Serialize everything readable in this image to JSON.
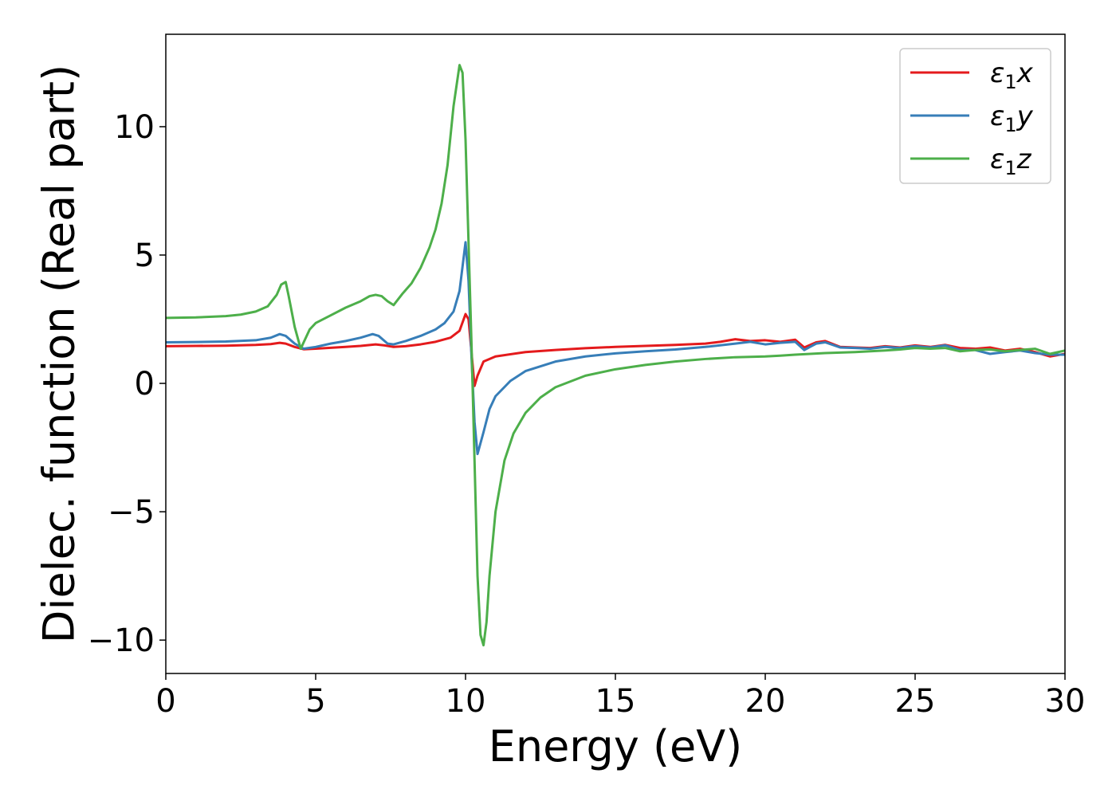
{
  "chart_data": {
    "type": "line",
    "title": "",
    "xlabel": "Energy (eV)",
    "ylabel": "Dielec. function (Real part)",
    "xlim": [
      0,
      30
    ],
    "ylim": [
      -11.3,
      13.6
    ],
    "xticks": [
      0,
      5,
      10,
      15,
      20,
      25,
      30
    ],
    "xtick_labels": [
      "0",
      "5",
      "10",
      "15",
      "20",
      "25",
      "30"
    ],
    "yticks": [
      -10,
      -5,
      0,
      5,
      10
    ],
    "ytick_labels": [
      "−10",
      "−5",
      "0",
      "5",
      "10"
    ],
    "grid": false,
    "legend_position": "upper right",
    "series": [
      {
        "name": "ε₁x",
        "legend_main": "ε",
        "legend_sub": "1",
        "legend_var": "x",
        "color": "#e41a1c",
        "x": [
          0,
          1,
          2,
          3,
          3.5,
          3.8,
          4.0,
          4.3,
          4.6,
          5.0,
          6.0,
          6.5,
          7.0,
          7.3,
          7.6,
          8.0,
          8.5,
          9.0,
          9.5,
          9.8,
          10.0,
          10.1,
          10.2,
          10.3,
          10.4,
          10.6,
          11.0,
          12.0,
          13.0,
          14.0,
          15.0,
          16.0,
          17.0,
          18.0,
          18.5,
          19.0,
          19.5,
          20.0,
          20.5,
          21.0,
          21.3,
          21.7,
          22.0,
          22.5,
          23.0,
          23.5,
          24.0,
          24.5,
          25.0,
          25.5,
          26.0,
          26.5,
          27.0,
          27.5,
          28.0,
          28.5,
          29.0,
          29.5,
          30.0
        ],
        "y": [
          1.45,
          1.46,
          1.47,
          1.5,
          1.53,
          1.58,
          1.55,
          1.42,
          1.33,
          1.35,
          1.42,
          1.46,
          1.52,
          1.48,
          1.42,
          1.45,
          1.52,
          1.62,
          1.78,
          2.05,
          2.7,
          2.5,
          1.2,
          -0.1,
          0.3,
          0.85,
          1.05,
          1.22,
          1.3,
          1.37,
          1.42,
          1.46,
          1.5,
          1.55,
          1.62,
          1.72,
          1.65,
          1.68,
          1.62,
          1.7,
          1.4,
          1.6,
          1.65,
          1.42,
          1.4,
          1.38,
          1.45,
          1.4,
          1.48,
          1.42,
          1.5,
          1.38,
          1.35,
          1.4,
          1.28,
          1.35,
          1.22,
          1.05,
          1.15
        ]
      },
      {
        "name": "ε₁y",
        "legend_main": "ε",
        "legend_sub": "1",
        "legend_var": "y",
        "color": "#377eb8",
        "x": [
          0,
          1,
          2,
          3,
          3.5,
          3.8,
          4.0,
          4.3,
          4.6,
          5.0,
          5.5,
          6.0,
          6.5,
          6.9,
          7.1,
          7.4,
          7.6,
          8.0,
          8.5,
          9.0,
          9.3,
          9.6,
          9.8,
          10.0,
          10.1,
          10.2,
          10.3,
          10.4,
          10.6,
          10.8,
          11.0,
          11.5,
          12.0,
          13.0,
          14.0,
          15.0,
          16.0,
          17.0,
          18.0,
          19.0,
          19.5,
          20.0,
          20.5,
          21.0,
          21.3,
          21.7,
          22.0,
          22.5,
          23.0,
          23.5,
          24.0,
          24.5,
          25.0,
          25.5,
          26.0,
          26.5,
          27.0,
          27.5,
          28.0,
          28.5,
          29.0,
          29.5,
          30.0
        ],
        "y": [
          1.6,
          1.61,
          1.63,
          1.68,
          1.78,
          1.92,
          1.85,
          1.55,
          1.35,
          1.42,
          1.55,
          1.65,
          1.78,
          1.92,
          1.85,
          1.55,
          1.52,
          1.65,
          1.85,
          2.1,
          2.35,
          2.8,
          3.6,
          5.5,
          4.0,
          1.0,
          -1.5,
          -2.75,
          -1.9,
          -1.0,
          -0.5,
          0.1,
          0.48,
          0.85,
          1.05,
          1.17,
          1.25,
          1.32,
          1.42,
          1.55,
          1.62,
          1.52,
          1.58,
          1.62,
          1.3,
          1.55,
          1.6,
          1.4,
          1.38,
          1.35,
          1.42,
          1.38,
          1.45,
          1.4,
          1.48,
          1.3,
          1.3,
          1.15,
          1.22,
          1.28,
          1.18,
          1.12,
          1.12
        ]
      },
      {
        "name": "ε₁z",
        "legend_main": "ε",
        "legend_sub": "1",
        "legend_var": "z",
        "color": "#4daf4a",
        "x": [
          0,
          1,
          2,
          2.5,
          3.0,
          3.4,
          3.7,
          3.85,
          4.0,
          4.1,
          4.3,
          4.5,
          4.6,
          4.8,
          5.0,
          5.5,
          6.0,
          6.5,
          6.8,
          7.0,
          7.2,
          7.4,
          7.6,
          7.9,
          8.2,
          8.5,
          8.8,
          9.0,
          9.2,
          9.4,
          9.6,
          9.8,
          9.9,
          10.0,
          10.1,
          10.2,
          10.3,
          10.4,
          10.5,
          10.6,
          10.7,
          10.8,
          11.0,
          11.3,
          11.6,
          12.0,
          12.5,
          13.0,
          14.0,
          15.0,
          16.0,
          17.0,
          18.0,
          19.0,
          20.0,
          20.5,
          21.0,
          21.5,
          22.0,
          22.5,
          23.0,
          23.5,
          24.0,
          24.5,
          25.0,
          25.5,
          26.0,
          26.5,
          27.0,
          27.5,
          28.0,
          28.5,
          29.0,
          29.5,
          30.0
        ],
        "y": [
          2.55,
          2.57,
          2.62,
          2.68,
          2.8,
          3.0,
          3.45,
          3.85,
          3.95,
          3.4,
          2.2,
          1.35,
          1.6,
          2.1,
          2.35,
          2.65,
          2.95,
          3.2,
          3.4,
          3.45,
          3.4,
          3.2,
          3.05,
          3.5,
          3.9,
          4.5,
          5.3,
          6.0,
          7.0,
          8.5,
          10.8,
          12.4,
          12.1,
          9.5,
          5.5,
          1.5,
          -3.0,
          -7.5,
          -9.8,
          -10.2,
          -9.3,
          -7.5,
          -5.0,
          -3.0,
          -1.95,
          -1.15,
          -0.55,
          -0.15,
          0.3,
          0.55,
          0.72,
          0.85,
          0.95,
          1.02,
          1.05,
          1.08,
          1.12,
          1.15,
          1.18,
          1.2,
          1.22,
          1.25,
          1.28,
          1.32,
          1.38,
          1.35,
          1.38,
          1.25,
          1.3,
          1.32,
          1.25,
          1.3,
          1.35,
          1.15,
          1.28
        ]
      }
    ]
  }
}
